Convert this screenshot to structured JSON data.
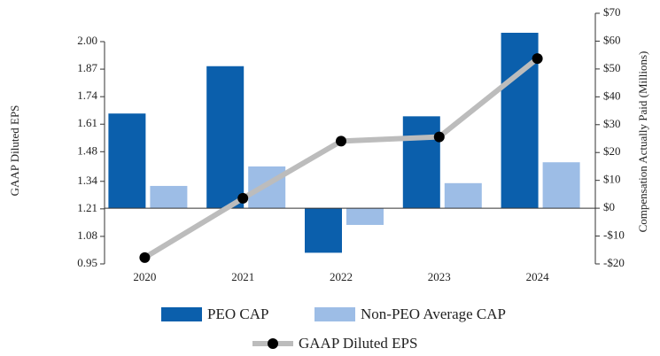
{
  "chart_data": {
    "type": "bar-line",
    "categories": [
      "2020",
      "2021",
      "2022",
      "2023",
      "2024"
    ],
    "ylabel": "GAAP Diluted EPS",
    "y2label": "Compensation Actually Paid (Millions)",
    "ylim": [
      0.95,
      2.0
    ],
    "yticks": [
      0.95,
      1.08,
      1.21,
      1.34,
      1.48,
      1.61,
      1.74,
      1.87,
      {
        "value": 2,
        "label": "2.00"
      }
    ],
    "y2lim": [
      -20,
      70
    ],
    "y2ticks": [
      {
        "value": -20,
        "label": "-$20"
      },
      {
        "value": -10,
        "label": "-$10"
      },
      {
        "value": 0,
        "label": "$0"
      },
      {
        "value": 10,
        "label": "$10"
      },
      {
        "value": 20,
        "label": "$20"
      },
      {
        "value": 30,
        "label": "$30"
      },
      {
        "value": 40,
        "label": "$40"
      },
      {
        "value": 50,
        "label": "$50"
      },
      {
        "value": 60,
        "label": "$60"
      },
      {
        "value": 70,
        "label": "$70"
      }
    ],
    "series": [
      {
        "name": "PEO CAP",
        "type": "bar",
        "axis": "y2",
        "color": "#0b5fac",
        "values": [
          34,
          51,
          -16,
          33,
          63
        ]
      },
      {
        "name": "Non-PEO Average CAP",
        "type": "bar",
        "axis": "y2",
        "color": "#9dbde6",
        "values": [
          8,
          15,
          -6,
          9,
          16.5
        ]
      },
      {
        "name": "GAAP Diluted EPS",
        "type": "line",
        "axis": "y",
        "color": "#bcbcbc",
        "values": [
          0.98,
          1.26,
          1.53,
          1.55,
          1.92
        ]
      }
    ]
  }
}
